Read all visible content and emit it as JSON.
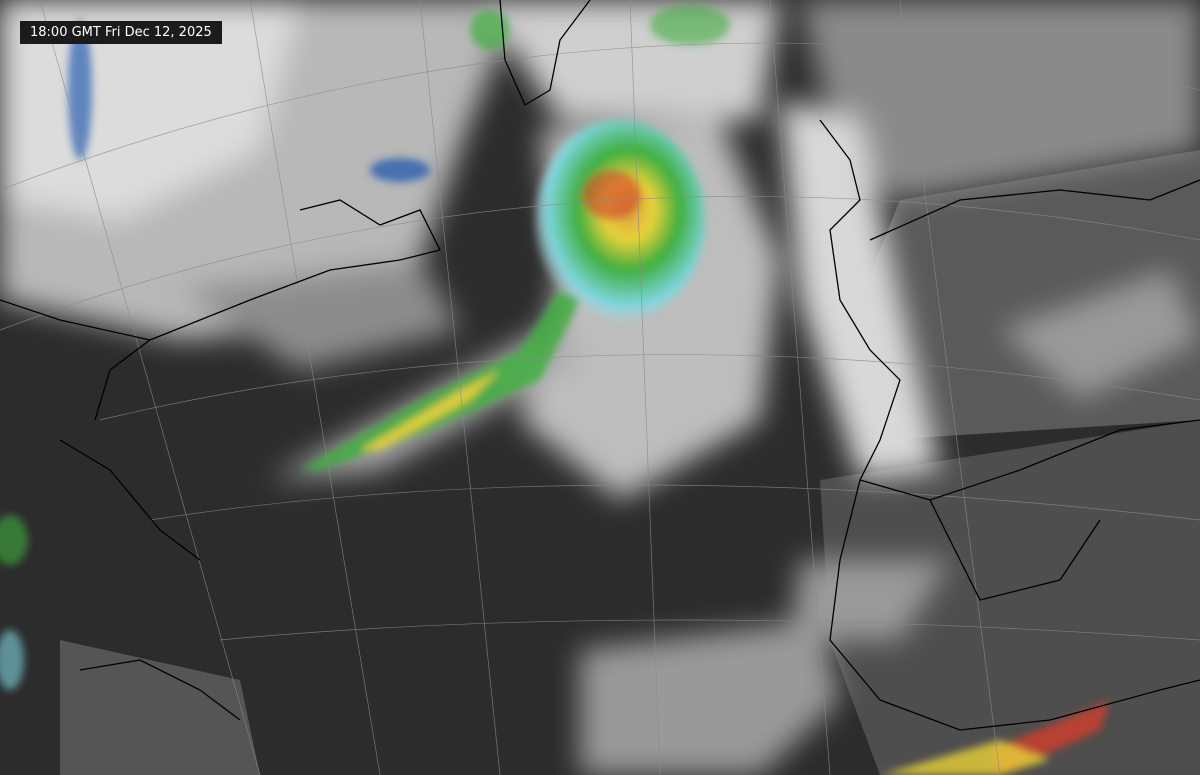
{
  "timestamp": "18:00 GMT Fri Dec 12, 2025",
  "imagery": {
    "type": "infrared satellite mosaic",
    "region": "North Atlantic",
    "colors": {
      "ocean_clear": "#2c2c2c",
      "land_clear": "#555555",
      "cloud_low": "#9a9a9a",
      "cloud_high": "#e6e6e6",
      "cold_top_cyan": "#7fd6e0",
      "cold_top_blue": "#2a5fb0",
      "cold_top_green": "#3fae3f",
      "cold_top_yellow": "#e8d23a",
      "cold_top_red": "#d2402a",
      "borders": "#000000",
      "graticule": "#8a8a8a"
    }
  }
}
